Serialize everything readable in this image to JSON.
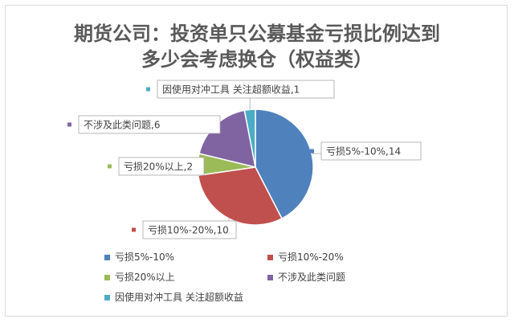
{
  "chart_data": {
    "type": "pie",
    "title_line1": "期货公司：投资单只公募基金亏损比例达到",
    "title_line2": "多少会考虑换仓（权益类）",
    "categories": [
      "亏损5%-10%",
      "亏损10%-20%",
      "亏损20%以上",
      "不涉及此类问题",
      "因使用对冲工具 关注超额收益"
    ],
    "values": [
      14,
      10,
      2,
      6,
      1
    ],
    "colors": [
      "#4F81BD",
      "#C0504D",
      "#9BBB59",
      "#8064A2",
      "#4BACC6"
    ],
    "data_labels": [
      "亏损5%-10%,14",
      "亏损10%-20%,10",
      "亏损20%以上,2",
      "不涉及此类问题,6",
      "因使用对冲工具 关注超额收益,1"
    ],
    "legend_position": "bottom"
  }
}
